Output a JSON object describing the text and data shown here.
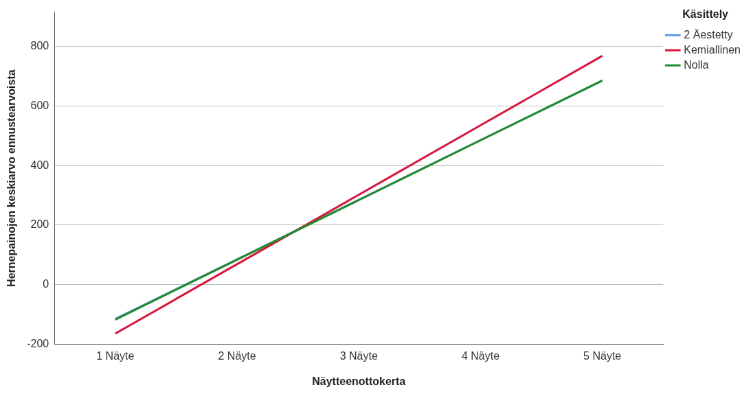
{
  "chart_data": {
    "type": "line",
    "xlabel": "Näytteenottokerta",
    "ylabel": "Hernepainojen keskiarvo ennustearvoista",
    "legend_title": "Käsittely",
    "categories": [
      "1 Näyte",
      "2 Näyte",
      "3 Näyte",
      "4 Näyte",
      "5 Näyte"
    ],
    "series": [
      {
        "name": "2 Äestetty",
        "color": "#5b9bdf",
        "values": [
          -115,
          85,
          285,
          485,
          685
        ]
      },
      {
        "name": "Kemiallinen",
        "color": "#d8143c",
        "values": [
          -164,
          69,
          302,
          535,
          768
        ]
      },
      {
        "name": "Nolla",
        "color": "#258a2a",
        "values": [
          -117,
          84,
          284,
          485,
          685
        ]
      }
    ],
    "ylim": [
      -200,
      915
    ],
    "yticks": [
      -200,
      0,
      200,
      400,
      600,
      800
    ],
    "grid": "y",
    "legend": "right",
    "marker": "none",
    "line_style": "solid"
  }
}
